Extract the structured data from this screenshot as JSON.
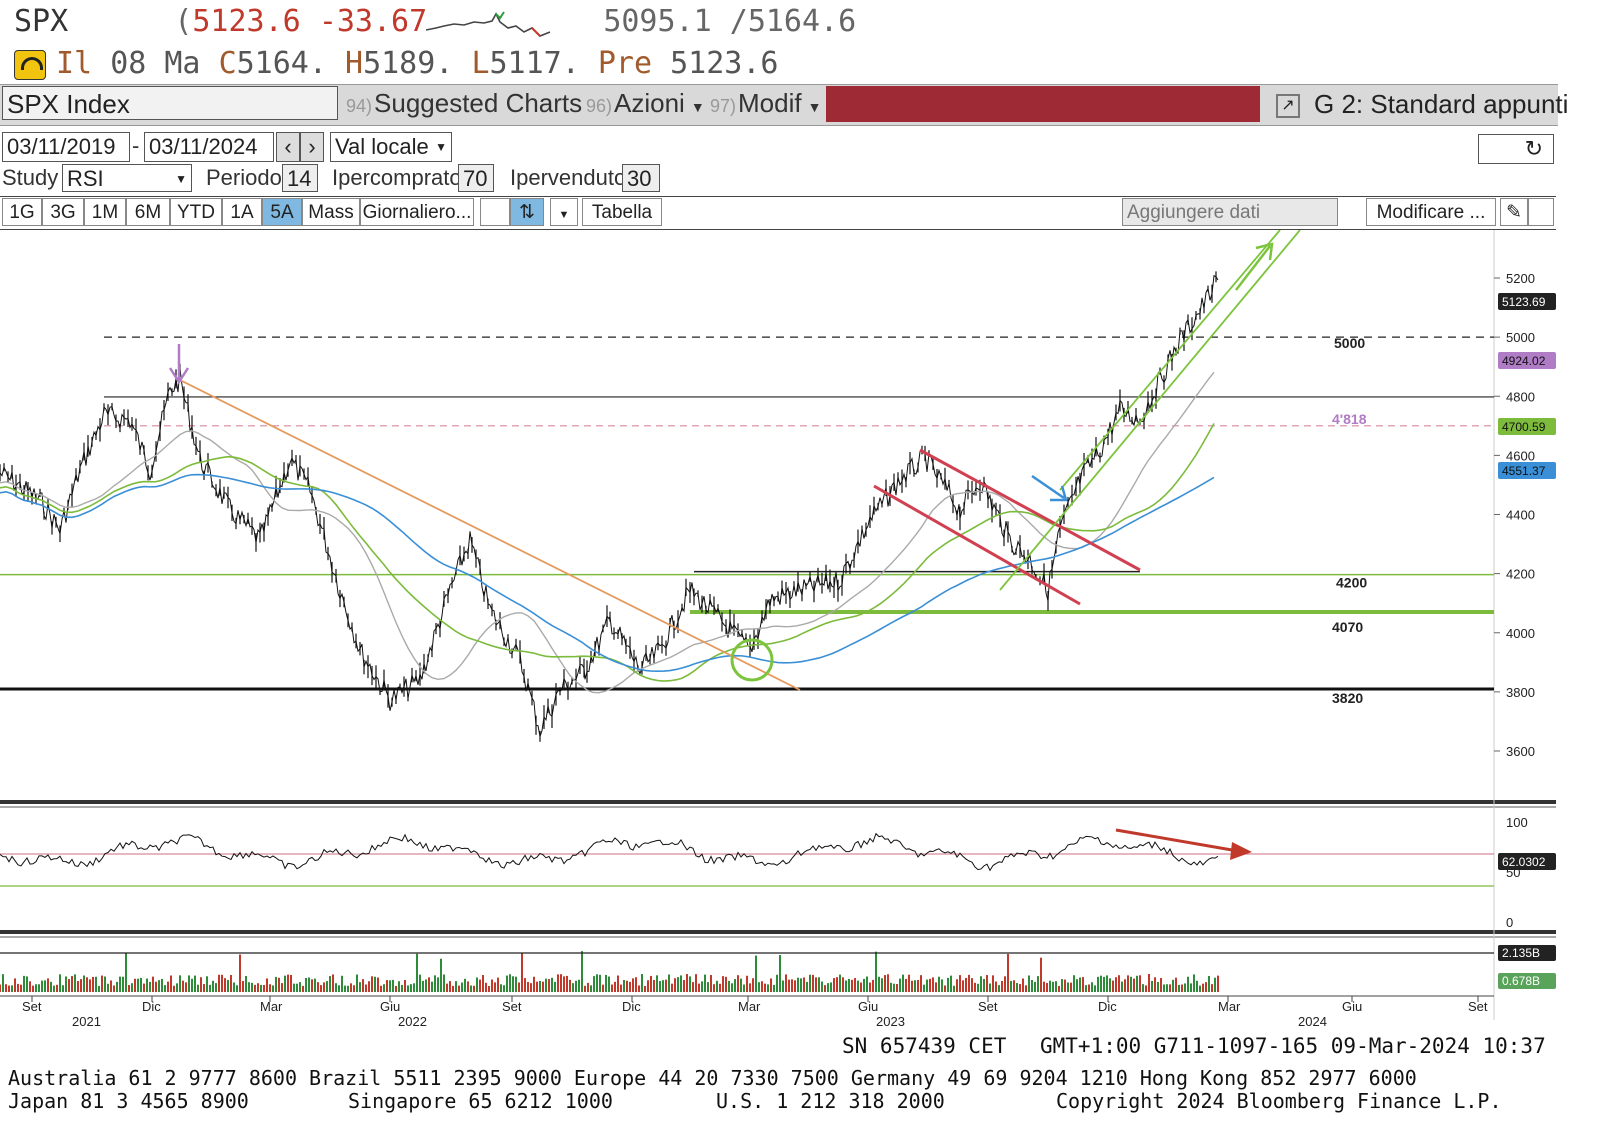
{
  "quote": {
    "symbol": "SPX",
    "prefix": "(",
    "last": "5123.6",
    "change": "-33.67",
    "low_52": "5095.1",
    "high_sep": "/",
    "high_52": "5164.6"
  },
  "quote2": {
    "ii": "Il",
    "date": "08 Ma",
    "c_label": "C",
    "c_value": "5164.",
    "h_label": "H",
    "h_value": "5189.",
    "l_label": "L",
    "l_value": "5117.",
    "pre_label": "Pre",
    "pre_value": "5123.6"
  },
  "menubar": {
    "ticker": "SPX Index",
    "items": [
      {
        "num": "94)",
        "label": "Suggested Charts"
      },
      {
        "num": "96)",
        "label": "Azioni"
      },
      {
        "num": "97)",
        "label": "Modif"
      }
    ],
    "layout": "G 2: Standard appunti"
  },
  "controls": {
    "date_from": "03/11/2019",
    "date_sep": "-",
    "date_to": "03/11/2024",
    "currency": "Val locale",
    "study_label": "Study",
    "study_value": "RSI",
    "period_label": "Periodo",
    "period_value": "14",
    "overbought_label": "Ipercomprato",
    "overbought_value": "70",
    "oversold_label": "Ipervenduto",
    "oversold_value": "30"
  },
  "timeframes": [
    "1G",
    "3G",
    "1M",
    "6M",
    "YTD",
    "1A",
    "5A",
    "Mass"
  ],
  "active_timeframe": "5A",
  "frequency": "Giornaliero...",
  "table_button": "Tabella",
  "add_data_placeholder": "Aggiungere dati",
  "modify_button": "Modificare ...",
  "chart_data": [
    {
      "type": "line",
      "title": "",
      "x": [
        "Set 2021",
        "Dic 2021",
        "Mar 2022",
        "Giu 2022",
        "Set 2022",
        "Dic 2022",
        "Mar 2023",
        "Giu 2023",
        "Set 2023",
        "Dic 2023",
        "Mar 2024"
      ],
      "series": [
        {
          "values": [
            4450,
            4750,
            4350,
            3850,
            4050,
            3850,
            3950,
            4350,
            4300,
            4550,
            5123
          ]
        }
      ],
      "yticks": [
        3600,
        3800,
        4000,
        4200,
        4400,
        4600,
        4800,
        5000,
        5200
      ],
      "ylim": [
        3500,
        5250
      ],
      "levels": [
        {
          "label": "5000",
          "value": 5000
        },
        {
          "label": "4'818",
          "value": 4818
        },
        {
          "label": "4200",
          "value": 4200
        },
        {
          "label": "4070",
          "value": 4070
        },
        {
          "label": "3820",
          "value": 3820
        }
      ],
      "tags": [
        {
          "label": "5123.69",
          "value": 5123.69,
          "color": "#222222"
        },
        {
          "label": "4924.02",
          "value": 4924.02,
          "color": "#b07cc6"
        },
        {
          "label": "4700.59",
          "value": 4700.59,
          "color": "#7cbb3b"
        },
        {
          "label": "4551.37",
          "value": 4551.37,
          "color": "#3a8fd6"
        }
      ]
    },
    {
      "type": "line",
      "title": "",
      "series": [
        {
          "name": "RSI",
          "values": [
            60,
            70,
            45,
            35,
            60,
            40,
            55,
            65,
            38,
            70,
            62.03
          ]
        }
      ],
      "yticks": [
        0,
        50,
        100
      ],
      "ylim": [
        0,
        100
      ],
      "tags": [
        {
          "label": "62.0302",
          "value": 62.0302,
          "color": "#222222"
        }
      ]
    },
    {
      "type": "bar",
      "title": "",
      "series": [
        {
          "name": "Volume",
          "values": [
            2.135,
            0.678
          ]
        }
      ],
      "tags": [
        {
          "label": "2.135B",
          "value": 2.135,
          "color": "#222222"
        },
        {
          "label": "0.678B",
          "value": 0.678,
          "color": "#5aa35a"
        }
      ]
    }
  ],
  "xaxis": {
    "months": [
      "Set",
      "Dic",
      "Mar",
      "Giu",
      "Set",
      "Dic",
      "Mar",
      "Giu",
      "Set",
      "Dic",
      "Mar",
      "Giu",
      "Set"
    ],
    "years": [
      "2021",
      "2022",
      "2023",
      "2024"
    ]
  },
  "footer": {
    "session": "SN 657439 CET",
    "tz": "GMT+1:00 G711-1097-165 09-Mar-2024 10:37",
    "line1": "Australia 61 2 9777 8600 Brazil 5511 2395 9000 Europe 44 20 7330 7500 Germany 49 69 9204 1210 Hong Kong 852 2977 6000",
    "line2a": "Japan 81 3 4565 8900",
    "line2b": "Singapore 65 6212 1000",
    "line2c": "U.S. 1 212 318 2000",
    "line2d": "Copyright 2024 Bloomberg Finance L.P."
  },
  "colors": {
    "down_red": "#c0392b",
    "channel_red": "#d04050",
    "channel_green": "#7cc43c",
    "ma_blue": "#3a8fd6",
    "ma_green": "#7cbb3b",
    "ma_grey": "#999999",
    "trend_orange": "#e59a5c",
    "arrow_purple": "#b07cc6",
    "arrow_blue": "#3a8fd6",
    "titlebar_red": "#9e2a36"
  }
}
